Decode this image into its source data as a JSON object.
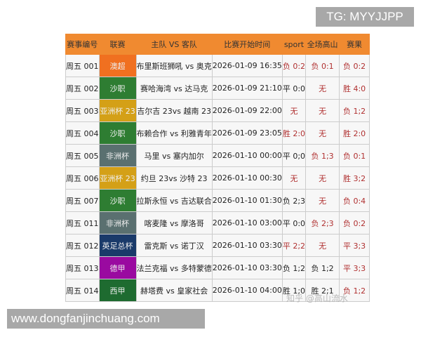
{
  "watermark_top": "TG: MYYJJPP",
  "watermark_bottom": "www.dongfanjinchuang.com",
  "watermark_zhihu": "知乎 @高山流水",
  "headers": [
    "赛事编号",
    "联赛",
    "主队 VS 客队",
    "比赛开始时间",
    "sport",
    "全场高山",
    "赛果"
  ],
  "rows": [
    {
      "id": "周五 001",
      "league": "澳超",
      "league_color": "#f07020",
      "match": "布里斯班狮吼 vs 奥克",
      "time": "2026-01-09 16:35",
      "sport": "负 0:2",
      "gaoshan": "负 0:1",
      "result": "负 0:2",
      "red": [
        1,
        1,
        1
      ]
    },
    {
      "id": "周五 002",
      "league": "沙职",
      "league_color": "#2e7d32",
      "match": "赛哈海湾 vs 达马克",
      "time": "2026-01-09 21:10",
      "sport": "平 0:0",
      "gaoshan": "无",
      "result": "胜 4:0",
      "red": [
        0,
        1,
        1
      ]
    },
    {
      "id": "周五 003",
      "league": "亚洲杯 23",
      "league_color": "#d4a017",
      "match": "吉尔吉 23vs 越南 23",
      "time": "2026-01-09 22:00",
      "sport": "无",
      "gaoshan": "无",
      "result": "负 1;2",
      "red": [
        1,
        1,
        1
      ]
    },
    {
      "id": "周五 004",
      "league": "沙职",
      "league_color": "#2e7d32",
      "match": "布赖合作 vs 利雅青年",
      "time": "2026-01-09 23:05",
      "sport": "胜 2:0",
      "gaoshan": "无",
      "result": "胜 2:0",
      "red": [
        1,
        1,
        1
      ]
    },
    {
      "id": "周五 005",
      "league": "非洲杯",
      "league_color": "#5a7070",
      "match": "马里 vs 塞内加尔",
      "time": "2026-01-10 00:00",
      "sport": "平 0;0",
      "gaoshan": "负 1;3",
      "result": "负 0:1",
      "red": [
        0,
        1,
        1
      ]
    },
    {
      "id": "周五 006",
      "league": "亚洲杯 23",
      "league_color": "#d4a017",
      "match": "约旦 23vs 沙特 23",
      "time": "2026-01-10 00:30",
      "sport": "无",
      "gaoshan": "无",
      "result": "胜 3;2",
      "red": [
        1,
        1,
        1
      ]
    },
    {
      "id": "周五 007",
      "league": "沙职",
      "league_color": "#2e7d32",
      "match": "拉斯永恒 vs 吉达联合",
      "time": "2026-01-10 01:30",
      "sport": "负 2;3",
      "gaoshan": "无",
      "result": "负 0:4",
      "red": [
        0,
        1,
        1
      ]
    },
    {
      "id": "周五 011",
      "league": "非洲杯",
      "league_color": "#5a7070",
      "match": "喀麦隆 vs 摩洛哥",
      "time": "2026-01-10 03:00",
      "sport": "平 0:0",
      "gaoshan": "负 2;3",
      "result": "负 0:2",
      "red": [
        0,
        1,
        1
      ]
    },
    {
      "id": "周五 012",
      "league": "英足总杯",
      "league_color": "#1a3a6a",
      "match": "雷克斯 vs 诺丁汉",
      "time": "2026-01-10 03:30",
      "sport": "平 2;2",
      "gaoshan": "无",
      "result": "平 3;3",
      "red": [
        1,
        1,
        1
      ]
    },
    {
      "id": "周五 013",
      "league": "德甲",
      "league_color": "#9a0aa0",
      "match": "法兰克福 vs 多特蒙德",
      "time": "2026-01-10 03:30",
      "sport": "负 1;2",
      "gaoshan": "负 1;2",
      "result": "平 3;3",
      "red": [
        0,
        0,
        1
      ]
    },
    {
      "id": "周五 014",
      "league": "西甲",
      "league_color": "#1e6b30",
      "match": "赫塔费 vs 皇家社会",
      "time": "2026-01-10 04:00",
      "sport": "胜 1;0",
      "gaoshan": "胜 2;1",
      "result": "负 1;2",
      "red": [
        0,
        0,
        1
      ]
    }
  ]
}
